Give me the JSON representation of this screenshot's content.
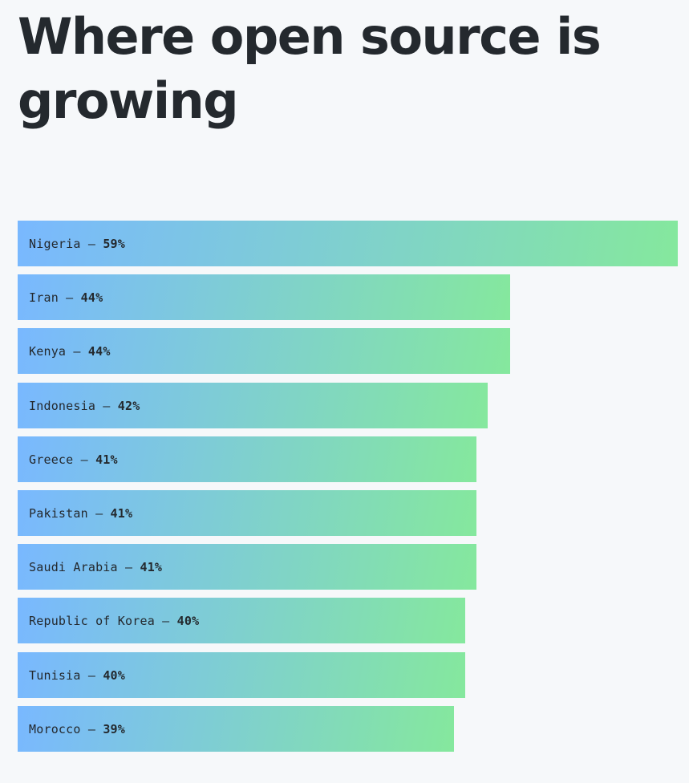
{
  "title": "Where open source is growing",
  "chart_data": {
    "type": "bar",
    "orientation": "horizontal",
    "title": "Where open source is growing",
    "categories": [
      "Nigeria",
      "Iran",
      "Kenya",
      "Indonesia",
      "Greece",
      "Pakistan",
      "Saudi Arabia",
      "Republic of Korea",
      "Tunisia",
      "Morocco"
    ],
    "values": [
      59,
      44,
      44,
      42,
      41,
      41,
      41,
      40,
      40,
      39
    ],
    "value_labels": [
      "59%",
      "44%",
      "44%",
      "42%",
      "41%",
      "41%",
      "41%",
      "40%",
      "40%",
      "39%"
    ],
    "separator": "–",
    "unit": "%",
    "xlabel": "",
    "ylabel": "",
    "grid": false,
    "colors": {
      "gradient_start": "#79b8ff",
      "gradient_end": "#85e89d",
      "text": "#24292e",
      "background": "#f6f8fa"
    }
  }
}
